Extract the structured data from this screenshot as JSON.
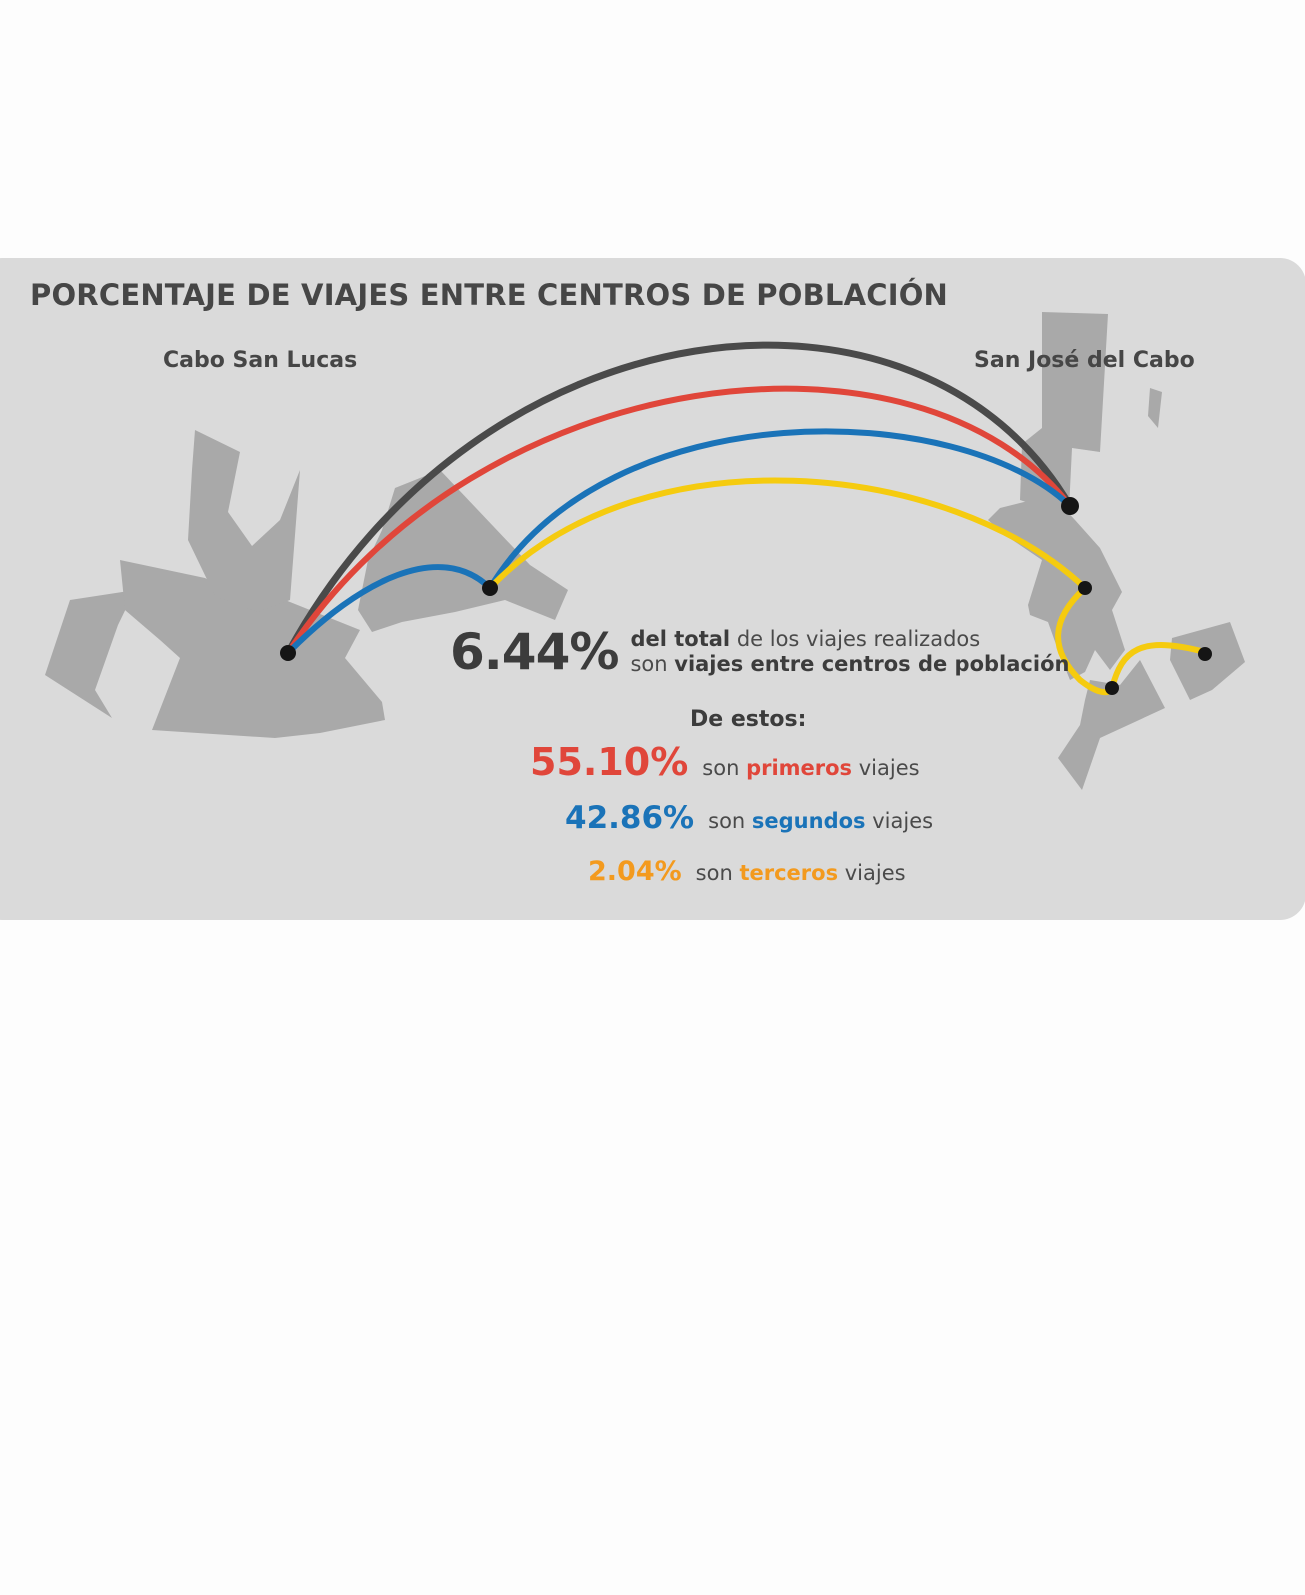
{
  "title": "PORCENTAJE DE VIAJES ENTRE CENTROS DE POBLACIÓN",
  "cities": {
    "left": "Cabo San Lucas",
    "right": "San José del Cabo"
  },
  "summary": {
    "value": "6.44%",
    "line1_bold": "del total",
    "line1_rest": " de los viajes realizados",
    "line2_pre": "son ",
    "line2_bold": "viajes entre centros de población"
  },
  "breakdown_heading": "De estos:",
  "breakdown": [
    {
      "value": "55.10%",
      "pre": "son ",
      "keyword": "primeros",
      "post": " viajes",
      "color": "#e0463a"
    },
    {
      "value": "42.86%",
      "pre": "son ",
      "keyword": "segundos",
      "post": " viajes",
      "color": "#1a73b8"
    },
    {
      "value": "2.04%",
      "pre": "son ",
      "keyword": "terceros",
      "post": " viajes",
      "color": "#f39a1e"
    }
  ],
  "route_colors": {
    "total": "#4a4a4a",
    "primeros": "#e0463a",
    "segundos": "#1a73b8",
    "terceros": "#f5cb0f"
  },
  "map_color": "#a9a9a9",
  "node_color": "#151515"
}
